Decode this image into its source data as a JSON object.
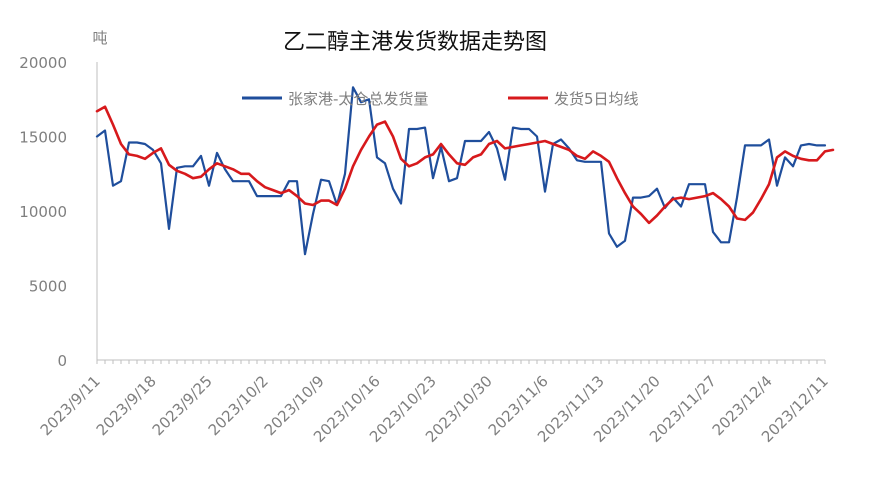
{
  "chart_data": {
    "type": "line",
    "title": "乙二醇主港发货数据走势图",
    "ylabel": "吨",
    "xlabel": "",
    "ylim": [
      0,
      20000
    ],
    "yticks": [
      0,
      5000,
      10000,
      15000,
      20000
    ],
    "x_tick_labels": [
      "2023/9/11",
      "2023/9/18",
      "2023/9/25",
      "2023/10/2",
      "2023/10/9",
      "2023/10/16",
      "2023/10/23",
      "2023/10/30",
      "2023/11/6",
      "2023/11/13",
      "2023/11/20",
      "2023/11/27",
      "2023/12/4",
      "2023/12/11"
    ],
    "x_start": "2023-09-11",
    "x_end": "2023-12-11",
    "grid": false,
    "legend_position": "top",
    "series": [
      {
        "name": "张家港-太仓总发货量",
        "color": "#1f4e9c",
        "points": [
          [
            "2023-09-11",
            15000
          ],
          [
            "2023-09-12",
            15400
          ],
          [
            "2023-09-13",
            11700
          ],
          [
            "2023-09-14",
            12000
          ],
          [
            "2023-09-15",
            14600
          ],
          [
            "2023-09-16",
            14600
          ],
          [
            "2023-09-17",
            14500
          ],
          [
            "2023-09-18",
            14100
          ],
          [
            "2023-09-19",
            13200
          ],
          [
            "2023-09-20",
            8800
          ],
          [
            "2023-09-21",
            12900
          ],
          [
            "2023-09-22",
            13000
          ],
          [
            "2023-09-23",
            13000
          ],
          [
            "2023-09-24",
            13700
          ],
          [
            "2023-09-25",
            11700
          ],
          [
            "2023-09-26",
            13900
          ],
          [
            "2023-09-27",
            12800
          ],
          [
            "2023-09-28",
            12000
          ],
          [
            "2023-09-29",
            12000
          ],
          [
            "2023-09-30",
            12000
          ],
          [
            "2023-10-01",
            11000
          ],
          [
            "2023-10-02",
            11000
          ],
          [
            "2023-10-03",
            11000
          ],
          [
            "2023-10-04",
            11000
          ],
          [
            "2023-10-05",
            12000
          ],
          [
            "2023-10-06",
            12000
          ],
          [
            "2023-10-07",
            7100
          ],
          [
            "2023-10-08",
            9800
          ],
          [
            "2023-10-09",
            12100
          ],
          [
            "2023-10-10",
            12000
          ],
          [
            "2023-10-11",
            10400
          ],
          [
            "2023-10-12",
            12500
          ],
          [
            "2023-10-13",
            18300
          ],
          [
            "2023-10-14",
            17300
          ],
          [
            "2023-10-15",
            17500
          ],
          [
            "2023-10-16",
            13600
          ],
          [
            "2023-10-17",
            13200
          ],
          [
            "2023-10-18",
            11500
          ],
          [
            "2023-10-19",
            10500
          ],
          [
            "2023-10-20",
            15500
          ],
          [
            "2023-10-21",
            15500
          ],
          [
            "2023-10-22",
            15600
          ],
          [
            "2023-10-23",
            12200
          ],
          [
            "2023-10-24",
            14300
          ],
          [
            "2023-10-25",
            12000
          ],
          [
            "2023-10-26",
            12200
          ],
          [
            "2023-10-27",
            14700
          ],
          [
            "2023-10-28",
            14700
          ],
          [
            "2023-10-29",
            14700
          ],
          [
            "2023-10-30",
            15300
          ],
          [
            "2023-10-31",
            14200
          ],
          [
            "2023-11-01",
            12100
          ],
          [
            "2023-11-02",
            15600
          ],
          [
            "2023-11-03",
            15500
          ],
          [
            "2023-11-04",
            15500
          ],
          [
            "2023-11-05",
            15000
          ],
          [
            "2023-11-06",
            11300
          ],
          [
            "2023-11-07",
            14500
          ],
          [
            "2023-11-08",
            14800
          ],
          [
            "2023-11-09",
            14200
          ],
          [
            "2023-11-10",
            13400
          ],
          [
            "2023-11-11",
            13300
          ],
          [
            "2023-11-12",
            13300
          ],
          [
            "2023-11-13",
            13300
          ],
          [
            "2023-11-14",
            8500
          ],
          [
            "2023-11-15",
            7600
          ],
          [
            "2023-11-16",
            8000
          ],
          [
            "2023-11-17",
            10900
          ],
          [
            "2023-11-18",
            10900
          ],
          [
            "2023-11-19",
            11000
          ],
          [
            "2023-11-20",
            11500
          ],
          [
            "2023-11-21",
            10200
          ],
          [
            "2023-11-22",
            10900
          ],
          [
            "2023-11-23",
            10300
          ],
          [
            "2023-11-24",
            11800
          ],
          [
            "2023-11-25",
            11800
          ],
          [
            "2023-11-26",
            11800
          ],
          [
            "2023-11-27",
            8600
          ],
          [
            "2023-11-28",
            7900
          ],
          [
            "2023-11-29",
            7900
          ],
          [
            "2023-11-30",
            10900
          ],
          [
            "2023-12-01",
            14400
          ],
          [
            "2023-12-02",
            14400
          ],
          [
            "2023-12-03",
            14400
          ],
          [
            "2023-12-04",
            14800
          ],
          [
            "2023-12-05",
            11700
          ],
          [
            "2023-12-06",
            13600
          ],
          [
            "2023-12-07",
            13000
          ],
          [
            "2023-12-08",
            14400
          ],
          [
            "2023-12-09",
            14500
          ],
          [
            "2023-12-10",
            14400
          ],
          [
            "2023-12-11",
            14400
          ]
        ]
      },
      {
        "name": "发货5日均线",
        "color": "#d7191c",
        "points": [
          [
            "2023-09-11",
            16700
          ],
          [
            "2023-09-12",
            17000
          ],
          [
            "2023-09-13",
            15800
          ],
          [
            "2023-09-14",
            14500
          ],
          [
            "2023-09-15",
            13800
          ],
          [
            "2023-09-16",
            13700
          ],
          [
            "2023-09-17",
            13500
          ],
          [
            "2023-09-18",
            13900
          ],
          [
            "2023-09-19",
            14200
          ],
          [
            "2023-09-20",
            13100
          ],
          [
            "2023-09-21",
            12700
          ],
          [
            "2023-09-22",
            12500
          ],
          [
            "2023-09-23",
            12200
          ],
          [
            "2023-09-24",
            12300
          ],
          [
            "2023-09-25",
            12800
          ],
          [
            "2023-09-26",
            13200
          ],
          [
            "2023-09-27",
            13000
          ],
          [
            "2023-09-28",
            12800
          ],
          [
            "2023-09-29",
            12500
          ],
          [
            "2023-09-30",
            12500
          ],
          [
            "2023-10-01",
            12000
          ],
          [
            "2023-10-02",
            11600
          ],
          [
            "2023-10-03",
            11400
          ],
          [
            "2023-10-04",
            11200
          ],
          [
            "2023-10-05",
            11400
          ],
          [
            "2023-10-06",
            11000
          ],
          [
            "2023-10-07",
            10500
          ],
          [
            "2023-10-08",
            10400
          ],
          [
            "2023-10-09",
            10700
          ],
          [
            "2023-10-10",
            10700
          ],
          [
            "2023-10-11",
            10400
          ],
          [
            "2023-10-12",
            11500
          ],
          [
            "2023-10-13",
            13000
          ],
          [
            "2023-10-14",
            14100
          ],
          [
            "2023-10-15",
            15000
          ],
          [
            "2023-10-16",
            15800
          ],
          [
            "2023-10-17",
            16000
          ],
          [
            "2023-10-18",
            15000
          ],
          [
            "2023-10-19",
            13500
          ],
          [
            "2023-10-20",
            13000
          ],
          [
            "2023-10-21",
            13200
          ],
          [
            "2023-10-22",
            13600
          ],
          [
            "2023-10-23",
            13800
          ],
          [
            "2023-10-24",
            14500
          ],
          [
            "2023-10-25",
            13800
          ],
          [
            "2023-10-26",
            13200
          ],
          [
            "2023-10-27",
            13100
          ],
          [
            "2023-10-28",
            13600
          ],
          [
            "2023-10-29",
            13800
          ],
          [
            "2023-10-30",
            14500
          ],
          [
            "2023-10-31",
            14700
          ],
          [
            "2023-11-01",
            14200
          ],
          [
            "2023-11-02",
            14300
          ],
          [
            "2023-11-03",
            14400
          ],
          [
            "2023-11-04",
            14500
          ],
          [
            "2023-11-05",
            14600
          ],
          [
            "2023-11-06",
            14700
          ],
          [
            "2023-11-07",
            14500
          ],
          [
            "2023-11-08",
            14300
          ],
          [
            "2023-11-09",
            14100
          ],
          [
            "2023-11-10",
            13700
          ],
          [
            "2023-11-11",
            13500
          ],
          [
            "2023-11-12",
            14000
          ],
          [
            "2023-11-13",
            13700
          ],
          [
            "2023-11-14",
            13300
          ],
          [
            "2023-11-15",
            12200
          ],
          [
            "2023-11-16",
            11200
          ],
          [
            "2023-11-17",
            10300
          ],
          [
            "2023-11-18",
            9800
          ],
          [
            "2023-11-19",
            9200
          ],
          [
            "2023-11-20",
            9700
          ],
          [
            "2023-11-21",
            10300
          ],
          [
            "2023-11-22",
            10800
          ],
          [
            "2023-11-23",
            10900
          ],
          [
            "2023-11-24",
            10800
          ],
          [
            "2023-11-25",
            10900
          ],
          [
            "2023-11-26",
            11000
          ],
          [
            "2023-11-27",
            11200
          ],
          [
            "2023-11-28",
            10800
          ],
          [
            "2023-11-29",
            10300
          ],
          [
            "2023-11-30",
            9500
          ],
          [
            "2023-12-01",
            9400
          ],
          [
            "2023-12-02",
            9900
          ],
          [
            "2023-12-03",
            10800
          ],
          [
            "2023-12-04",
            11800
          ],
          [
            "2023-12-05",
            13600
          ],
          [
            "2023-12-06",
            14000
          ],
          [
            "2023-12-07",
            13700
          ],
          [
            "2023-12-08",
            13500
          ],
          [
            "2023-12-09",
            13400
          ],
          [
            "2023-12-10",
            13400
          ],
          [
            "2023-12-11",
            14000
          ],
          [
            "2023-12-12",
            14100
          ]
        ]
      }
    ]
  }
}
